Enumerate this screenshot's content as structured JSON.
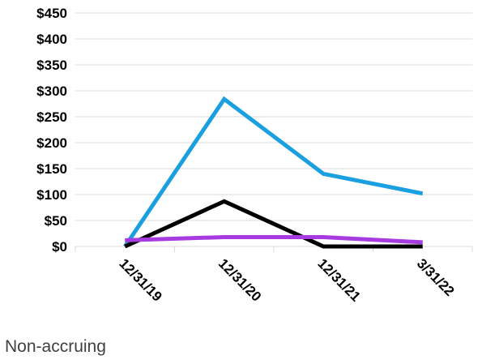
{
  "caption": "Non-accruing",
  "chart_data": {
    "type": "line",
    "categories": [
      "12/31/19",
      "12/31/20",
      "12/31/21",
      "3/31/22"
    ],
    "y_tick_labels": [
      "$0",
      "$50",
      "$100",
      "$150",
      "$200",
      "$250",
      "$300",
      "$350",
      "$400",
      "$450"
    ],
    "ylim": [
      0,
      450
    ],
    "grid": true,
    "legend": "none",
    "series": [
      {
        "color": "#1aa0e0",
        "values": [
          0,
          284,
          140,
          102
        ]
      },
      {
        "color": "#000000",
        "values": [
          0,
          87,
          0,
          0
        ]
      },
      {
        "color": "#a83be0",
        "values": [
          12,
          18,
          18,
          8
        ]
      }
    ]
  }
}
